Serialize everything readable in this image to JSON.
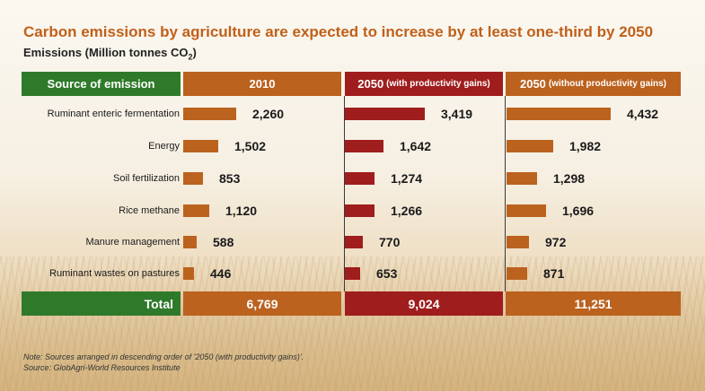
{
  "title": "Carbon emissions by agriculture are expected to increase by at least one-third by 2050",
  "subtitle": {
    "text": "Emissions (Million tonnes CO",
    "sub": "2",
    "close": ")"
  },
  "columns": {
    "source": "Source of emission",
    "c2010": "2010",
    "c2050p_main": "2050",
    "c2050p_note": "(with productivity gains)",
    "c2050n_main": "2050",
    "c2050n_note": "(without productivity gains)"
  },
  "rows": [
    {
      "label": "Ruminant enteric fermentation",
      "v2010": "2,260",
      "v2050p": "3,419",
      "v2050n": "4,432"
    },
    {
      "label": "Energy",
      "v2010": "1,502",
      "v2050p": "1,642",
      "v2050n": "1,982"
    },
    {
      "label": "Soil fertilization",
      "v2010": "853",
      "v2050p": "1,274",
      "v2050n": "1,298"
    },
    {
      "label": "Rice methane",
      "v2010": "1,120",
      "v2050p": "1,266",
      "v2050n": "1,696"
    },
    {
      "label": "Manure management",
      "v2010": "588",
      "v2050p": "770",
      "v2050n": "972"
    },
    {
      "label": "Ruminant wastes on pastures",
      "v2010": "446",
      "v2050p": "653",
      "v2050n": "871"
    }
  ],
  "total": {
    "label": "Total",
    "v2010": "6,769",
    "v2050p": "9,024",
    "v2050n": "11,251"
  },
  "note": "Note: Sources arranged in descending order of '2050 (with productivity gains)'.",
  "source": "Source: GlobAgri-World Resources Institute",
  "colors": {
    "green": "#2f7a2a",
    "orange": "#bb621f",
    "red": "#a01d1d",
    "title": "#c0601a"
  },
  "chart_data": {
    "type": "bar",
    "title": "Carbon emissions by agriculture are expected to increase by at least one-third by 2050",
    "ylabel": "Emissions (Million tonnes CO2)",
    "categories": [
      "Ruminant enteric fermentation",
      "Energy",
      "Soil fertilization",
      "Rice methane",
      "Manure management",
      "Ruminant wastes on pastures"
    ],
    "series": [
      {
        "name": "2010",
        "values": [
          2260,
          1502,
          853,
          1120,
          588,
          446
        ]
      },
      {
        "name": "2050 (with productivity gains)",
        "values": [
          3419,
          1642,
          1274,
          1266,
          770,
          653
        ]
      },
      {
        "name": "2050 (without productivity gains)",
        "values": [
          4432,
          1982,
          1298,
          1696,
          972,
          871
        ]
      }
    ],
    "totals": [
      6769,
      9024,
      11251
    ],
    "xlim": [
      0,
      4432
    ]
  }
}
